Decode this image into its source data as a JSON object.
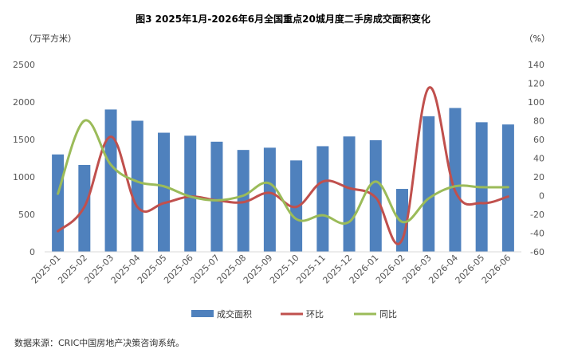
{
  "chart_data": {
    "type": "bar",
    "title": "图3  2025年1月-2026年6月全国重点20城月度二手房成交面积变化",
    "ylabel_left": "（万平方米）",
    "ylabel_right": "（%）",
    "ylim_left": [
      0,
      2500
    ],
    "yticks_left": [
      0,
      500,
      1000,
      1500,
      2000,
      2500
    ],
    "ylim_right": [
      -60,
      140
    ],
    "yticks_right": [
      -60,
      -40,
      -20,
      0,
      20,
      40,
      60,
      80,
      100,
      120,
      140
    ],
    "categories": [
      "2025-01",
      "2025-02",
      "2025-03",
      "2025-04",
      "2025-05",
      "2025-06",
      "2025-07",
      "2025-08",
      "2025-09",
      "2025-10",
      "2025-11",
      "2025-12",
      "2026-01",
      "2026-02",
      "2026-03",
      "2026-04",
      "2026-05",
      "2026-06"
    ],
    "series": [
      {
        "name": "成交面积",
        "type": "bar",
        "axis": "left",
        "color": "#4f81bd",
        "values": [
          1300,
          1160,
          1900,
          1750,
          1590,
          1550,
          1470,
          1360,
          1390,
          1220,
          1410,
          1540,
          1490,
          840,
          1810,
          1920,
          1730,
          1700
        ]
      },
      {
        "name": "环比",
        "type": "line",
        "axis": "right",
        "color": "#c0504d",
        "values": [
          -38,
          -12,
          63,
          -12,
          -8,
          -1,
          -5,
          -7,
          3,
          -12,
          15,
          8,
          -2,
          -47,
          115,
          5,
          -8,
          -1
        ]
      },
      {
        "name": "同比",
        "type": "line",
        "axis": "right",
        "color": "#9bbb59",
        "values": [
          2,
          80,
          33,
          15,
          10,
          -1,
          -5,
          0,
          13,
          -25,
          -21,
          -28,
          15,
          -28,
          -3,
          10,
          9,
          9
        ]
      }
    ],
    "legend_position": "bottom",
    "grid": false
  },
  "source_text": "数据来源：CRIC中国房地产决策咨询系统。"
}
